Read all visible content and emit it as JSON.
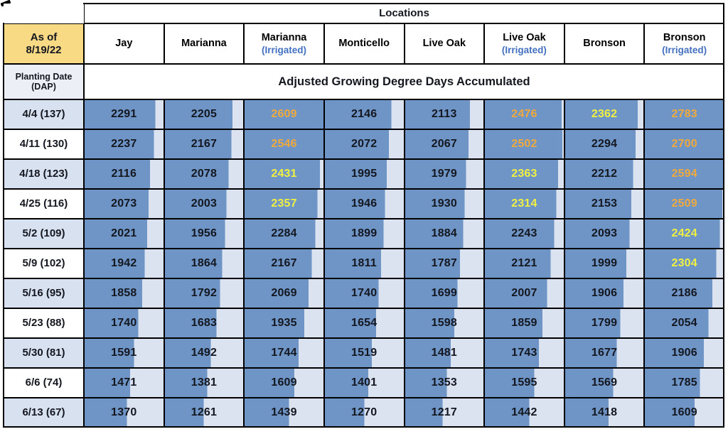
{
  "chart_data": {
    "type": "table",
    "title": "Locations",
    "subtitle": "Adjusted Growing Degree Days Accumulated",
    "corner_header": {
      "line1": "As of",
      "line2": "8/19/22"
    },
    "row_label_header": {
      "line1": "Planting Date",
      "line2": "(DAP)"
    },
    "columns": [
      {
        "name": "Jay",
        "sub": ""
      },
      {
        "name": "Marianna",
        "sub": ""
      },
      {
        "name": "Marianna",
        "sub": "(Irrigated)"
      },
      {
        "name": "Monticello",
        "sub": ""
      },
      {
        "name": "Live Oak",
        "sub": ""
      },
      {
        "name": "Live Oak",
        "sub": "(Irrigated)"
      },
      {
        "name": "Bronson",
        "sub": ""
      },
      {
        "name": "Bronson",
        "sub": "(Irrigated)"
      }
    ],
    "rows": [
      {
        "label": "4/4 (137)",
        "values": [
          2291,
          2205,
          2609,
          2146,
          2113,
          2476,
          2362,
          2783
        ]
      },
      {
        "label": "4/11 (130)",
        "values": [
          2237,
          2167,
          2546,
          2072,
          2067,
          2502,
          2294,
          2700
        ]
      },
      {
        "label": "4/18 (123)",
        "values": [
          2116,
          2078,
          2431,
          1995,
          1979,
          2363,
          2212,
          2594
        ]
      },
      {
        "label": "4/25 (116)",
        "values": [
          2073,
          2003,
          2357,
          1946,
          1930,
          2314,
          2153,
          2509
        ]
      },
      {
        "label": "5/2 (109)",
        "values": [
          2021,
          1956,
          2284,
          1899,
          1884,
          2243,
          2093,
          2424
        ]
      },
      {
        "label": "5/9 (102)",
        "values": [
          1942,
          1864,
          2167,
          1811,
          1787,
          2121,
          1999,
          2304
        ]
      },
      {
        "label": "5/16 (95)",
        "values": [
          1858,
          1792,
          2069,
          1740,
          1699,
          2007,
          1906,
          2186
        ]
      },
      {
        "label": "5/23 (88)",
        "values": [
          1740,
          1683,
          1935,
          1654,
          1598,
          1859,
          1799,
          2054
        ]
      },
      {
        "label": "5/30 (81)",
        "values": [
          1591,
          1492,
          1744,
          1519,
          1481,
          1743,
          1677,
          1906
        ]
      },
      {
        "label": "6/6 (74)",
        "values": [
          1471,
          1381,
          1609,
          1401,
          1353,
          1595,
          1569,
          1785
        ]
      },
      {
        "label": "6/13 (67)",
        "values": [
          1370,
          1261,
          1439,
          1270,
          1217,
          1442,
          1418,
          1609
        ]
      }
    ],
    "conditional_format": {
      "bar_scale_min": 0,
      "bar_scale_max": 2550,
      "text_gold_min": 2450,
      "text_yellow_min": 2300
    },
    "legend_position": "none",
    "grid": true
  },
  "colors": {
    "bar_blue": "#6E95C6",
    "bar_bg": "#DBE2F0",
    "row_label_alt": "#D8E1F0",
    "planting_header_bg": "#ECEFF6",
    "corner_gold": "#F8DA85",
    "value_gold": "#EFA93C",
    "value_yellow": "#F0F041",
    "irrigated_blue": "#4470C0",
    "dark_text": "#14171F",
    "border": "#000000"
  }
}
